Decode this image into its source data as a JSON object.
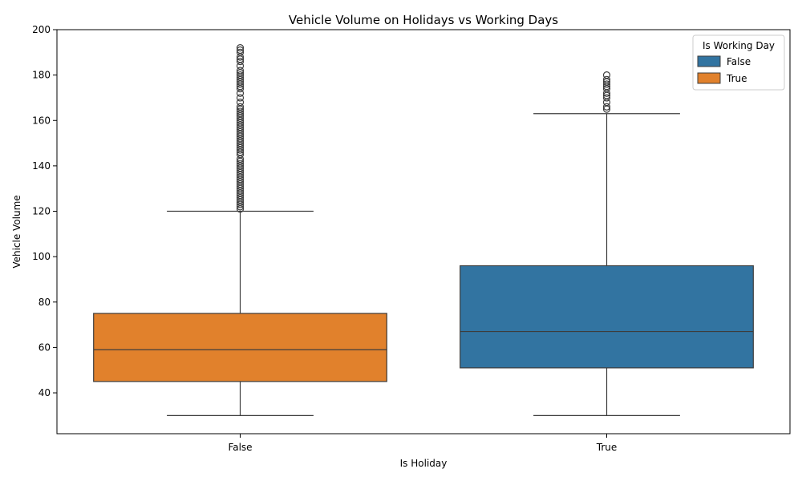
{
  "chart_data": {
    "type": "box",
    "title": "Vehicle Volume on Holidays vs Working Days",
    "xlabel": "Is Holiday",
    "ylabel": "Vehicle Volume",
    "ylim": [
      22,
      200
    ],
    "yticks": [
      40,
      60,
      80,
      100,
      120,
      140,
      160,
      180,
      200
    ],
    "categories": [
      "False",
      "True"
    ],
    "legend": {
      "title": "Is Working Day",
      "position": "top-right",
      "entries": [
        {
          "label": "False",
          "color": "#3274a1"
        },
        {
          "label": "True",
          "color": "#e1812c"
        }
      ]
    },
    "boxes": [
      {
        "category": "False",
        "series": "True",
        "color": "#e1812c",
        "whisker_low": 30,
        "q1": 45,
        "median": 59,
        "q3": 75,
        "whisker_high": 120,
        "outliers": [
          121,
          122,
          123,
          124,
          125,
          126,
          127,
          128,
          129,
          130,
          131,
          132,
          133,
          134,
          135,
          136,
          137,
          138,
          139,
          140,
          141,
          142,
          143,
          145,
          146,
          147,
          148,
          149,
          150,
          151,
          152,
          153,
          154,
          155,
          156,
          157,
          158,
          159,
          160,
          161,
          162,
          163,
          164,
          165,
          166,
          168,
          170,
          172,
          174,
          175,
          176,
          177,
          178,
          179,
          180,
          181,
          182,
          184,
          186,
          187,
          188,
          190,
          191,
          192
        ]
      },
      {
        "category": "True",
        "series": "False",
        "color": "#3274a1",
        "whisker_low": 30,
        "q1": 51,
        "median": 67,
        "q3": 96,
        "whisker_high": 163,
        "outliers": [
          165,
          166,
          168,
          170,
          171,
          172,
          174,
          175,
          176,
          177,
          178,
          180
        ]
      }
    ]
  }
}
